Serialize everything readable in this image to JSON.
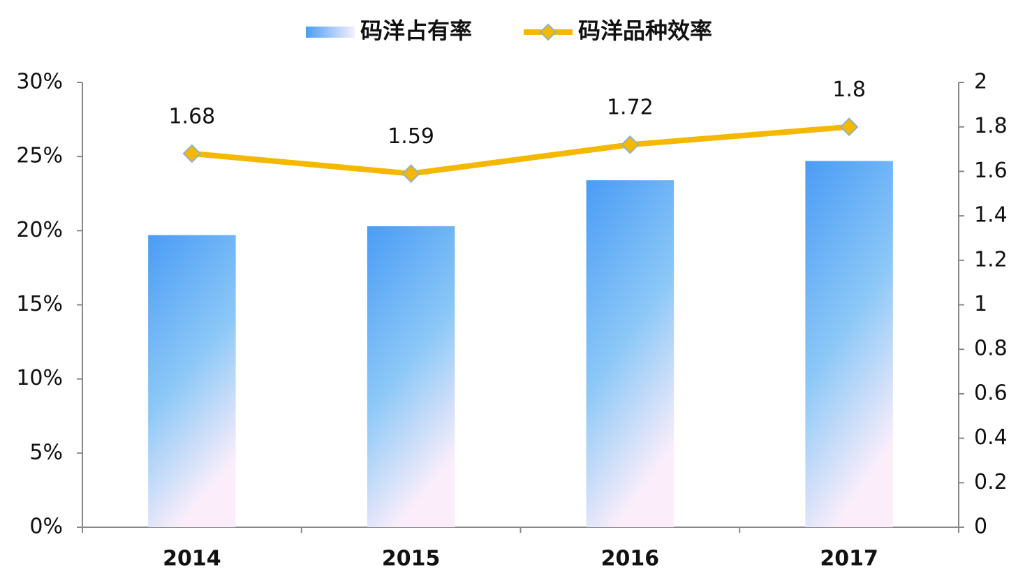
{
  "chart_data": {
    "type": "bar",
    "categories": [
      "2014",
      "2015",
      "2016",
      "2017"
    ],
    "series": [
      {
        "name": "码洋占有率",
        "type": "bar",
        "color": "#4da0f5",
        "values": [
          19.7,
          20.3,
          23.4,
          24.7
        ]
      },
      {
        "name": "码洋品种效率",
        "type": "line",
        "axis": "y2",
        "color": "#f5b800",
        "values": [
          1.68,
          1.59,
          1.72,
          1.8
        ]
      }
    ],
    "ylim": [
      0,
      30
    ],
    "yticks": [
      {
        "value": 0,
        "label": "0%"
      },
      {
        "value": 5,
        "label": "5%"
      },
      {
        "value": 10,
        "label": "10%"
      },
      {
        "value": 15,
        "label": "15%"
      },
      {
        "value": 20,
        "label": "20%"
      },
      {
        "value": 25,
        "label": "25%"
      },
      {
        "value": 30,
        "label": "30%"
      }
    ],
    "y2lim": [
      0,
      2
    ],
    "y2ticks": [
      0,
      0.2,
      0.4,
      0.6,
      0.8,
      1,
      1.2,
      1.4,
      1.6,
      1.8,
      2
    ],
    "legend": "top"
  }
}
